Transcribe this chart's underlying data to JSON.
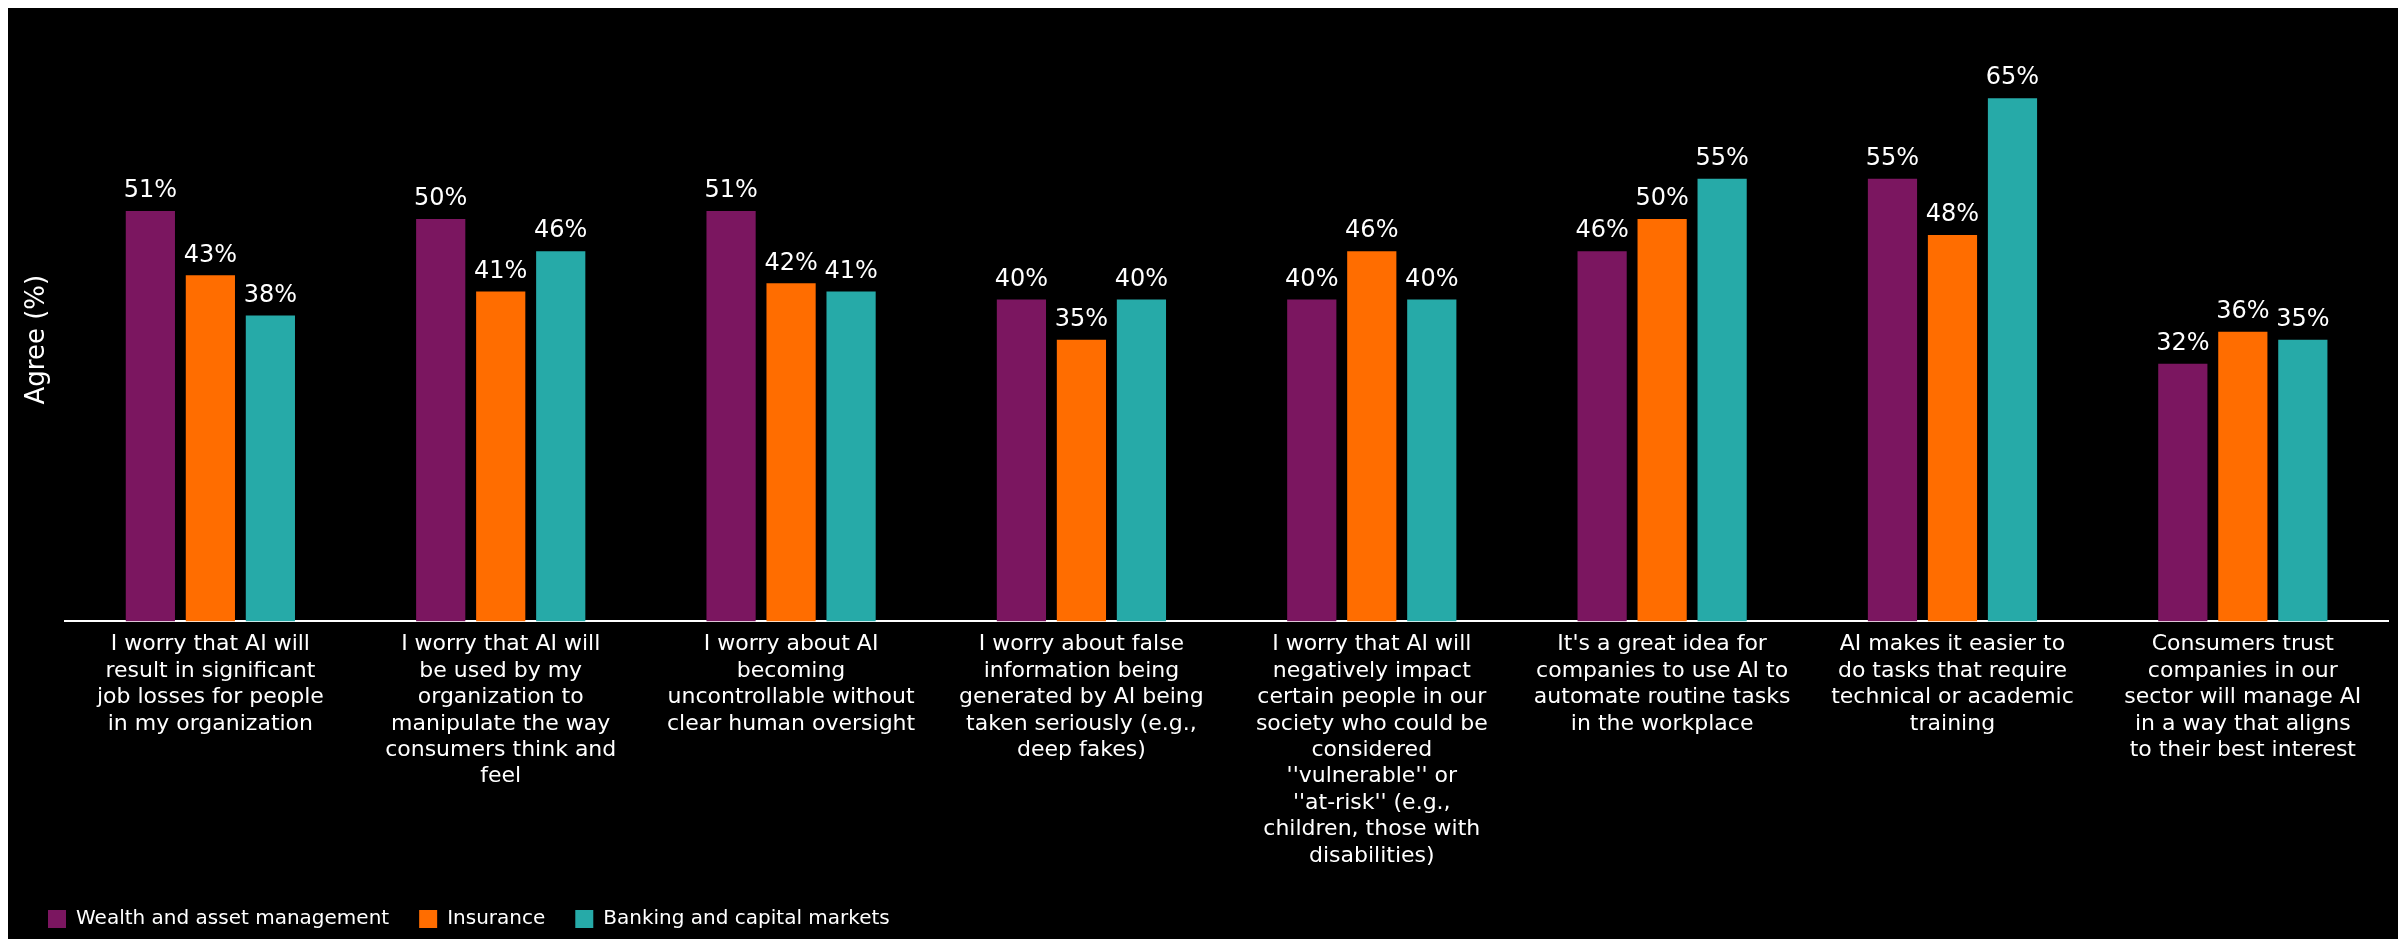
{
  "chart_data": {
    "type": "bar",
    "ylabel": "Agree (%)",
    "categories": [
      "I worry that AI will result in significant job losses for people in my organization",
      "I worry that AI will be used by my organization to manipulate the way consumers think and feel",
      "I worry about AI becoming uncontrollable without clear human oversight",
      "I worry about false information being generated by AI being taken seriously (e.g., deep fakes)",
      "I worry that AI will negatively impact certain people in our society who could be considered ''vulnerable'' or ''at-risk'' (e.g., children, those with disabilities)",
      "It's a great idea for companies to use AI to automate routine tasks in the workplace",
      "AI makes it easier to do tasks that require technical or academic training",
      "Consumers trust companies in our sector will manage AI in a way that aligns to their best interest"
    ],
    "series": [
      {
        "name": "Wealth and asset management",
        "color": "#7b1660",
        "values": [
          51,
          50,
          51,
          40,
          40,
          46,
          55,
          32
        ],
        "value_labels": [
          "51%",
          "50%",
          "51%",
          "40%",
          "40%",
          "46%",
          "55%",
          "32%"
        ]
      },
      {
        "name": "Insurance",
        "color": "#ff6d00",
        "values": [
          43,
          41,
          42,
          35,
          46,
          50,
          48,
          36
        ],
        "value_labels": [
          "43%",
          "41%",
          "42%",
          "35%",
          "46%",
          "50%",
          "48%",
          "36%"
        ]
      },
      {
        "name": "Banking and capital markets",
        "color": "#26aaa8",
        "values": [
          38,
          46,
          41,
          40,
          40,
          55,
          65,
          35
        ],
        "value_labels": [
          "38%",
          "46%",
          "41%",
          "40%",
          "40%",
          "55%",
          "65%",
          "35%"
        ]
      }
    ],
    "tick_labels": "x",
    "grid": false,
    "legend": "bottom left"
  }
}
